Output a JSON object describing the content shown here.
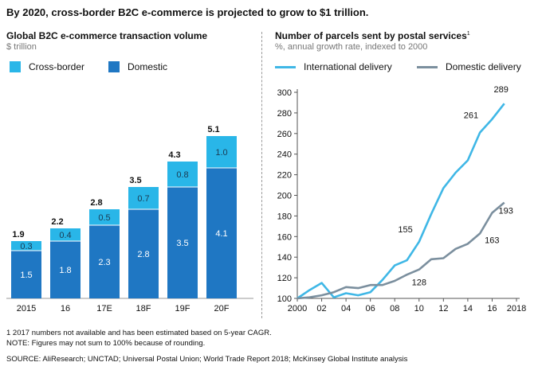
{
  "headline": "By 2020, cross-border B2C e-commerce is projected to grow to $1 trillion.",
  "colors": {
    "cross_border": "#29b6e8",
    "domestic": "#1f77c3",
    "international": "#3fb7e6",
    "domestic_delivery": "#7b8f9e"
  },
  "chart_data": [
    {
      "type": "bar",
      "title": "Global B2C e-commerce transaction volume",
      "subtitle": "$ trillion",
      "categories": [
        "2015",
        "16",
        "17E",
        "18F",
        "19F",
        "20F"
      ],
      "series": [
        {
          "name": "Domestic",
          "values": [
            "1.5",
            "1.8",
            "2.3",
            "2.8",
            "3.5",
            "4.1"
          ]
        },
        {
          "name": "Cross-border",
          "values": [
            "0.3",
            "0.4",
            "0.5",
            "0.7",
            "0.8",
            "1.0"
          ]
        }
      ],
      "totals": [
        "1.9",
        "2.2",
        "2.8",
        "3.5",
        "4.3",
        "5.1"
      ],
      "stacked": true,
      "legend": [
        "Cross-border",
        "Domestic"
      ]
    },
    {
      "type": "line",
      "title": "Number of parcels sent by postal services",
      "title_footnote": "1",
      "subtitle": "%, annual growth rate, indexed to 2000",
      "x_ticks": [
        "2000",
        "02",
        "04",
        "06",
        "08",
        "10",
        "12",
        "14",
        "16",
        "2018"
      ],
      "y_ticks": [
        "100",
        "120",
        "140",
        "160",
        "180",
        "200",
        "220",
        "240",
        "260",
        "280",
        "300"
      ],
      "xlim": [
        2000,
        2018
      ],
      "ylim": [
        100,
        300
      ],
      "series": [
        {
          "name": "International delivery",
          "x": [
            2000,
            2001,
            2002,
            2003,
            2004,
            2005,
            2006,
            2007,
            2008,
            2009,
            2010,
            2011,
            2012,
            2013,
            2014,
            2015,
            2016,
            2017
          ],
          "y": [
            100,
            108,
            115,
            101,
            105,
            103,
            106,
            118,
            132,
            137,
            155,
            182,
            207,
            222,
            234,
            261,
            274,
            289
          ]
        },
        {
          "name": "Domestic delivery",
          "x": [
            2000,
            2001,
            2002,
            2003,
            2004,
            2005,
            2006,
            2007,
            2008,
            2009,
            2010,
            2011,
            2012,
            2013,
            2014,
            2015,
            2016,
            2017
          ],
          "y": [
            100,
            101,
            103,
            106,
            111,
            110,
            113,
            113,
            117,
            123,
            128,
            138,
            139,
            148,
            153,
            163,
            183,
            193
          ]
        }
      ],
      "annotations": [
        {
          "label": "155",
          "series": "International delivery",
          "x": 2010
        },
        {
          "label": "261",
          "series": "International delivery",
          "x": 2015
        },
        {
          "label": "289",
          "series": "International delivery",
          "x": 2017
        },
        {
          "label": "128",
          "series": "Domestic delivery",
          "x": 2010
        },
        {
          "label": "163",
          "series": "Domestic delivery",
          "x": 2015
        },
        {
          "label": "193",
          "series": "Domestic delivery",
          "x": 2017
        }
      ]
    }
  ],
  "footnotes": {
    "note1": "1  2017 numbers not available and has been estimated based on 5-year CAGR.",
    "note2": "NOTE: Figures may not sum to 100% because of rounding.",
    "source": "SOURCE:  AliResearch; UNCTAD; Universal Postal Union; World Trade Report 2018; McKinsey Global Institute analysis"
  }
}
